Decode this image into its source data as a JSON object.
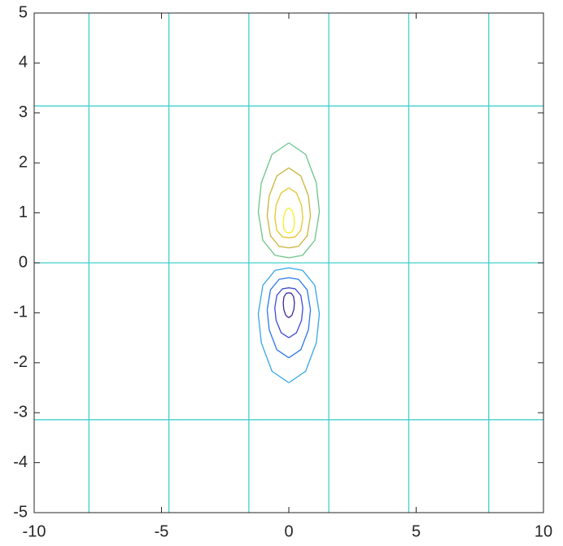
{
  "chart_data": {
    "type": "contour",
    "xlim": [
      -10,
      10
    ],
    "xticks": [
      -10,
      -5,
      0,
      5,
      10
    ],
    "ylim": [
      -5,
      5
    ],
    "yticks": [
      -5,
      -4,
      -3,
      -2,
      -1,
      0,
      1,
      2,
      3,
      4,
      5
    ],
    "series": [
      {
        "color": "#40d0cc",
        "x": [
          -7.85,
          -7.85,
          null,
          -4.71,
          -4.71,
          null,
          -1.57,
          -1.57,
          null,
          1.57,
          1.57,
          null,
          4.71,
          4.71,
          null,
          7.85,
          7.85,
          null,
          -10,
          10,
          null,
          -10,
          10,
          null,
          -10,
          10
        ],
        "y": [
          -5,
          5,
          null,
          -5,
          5,
          null,
          -5,
          5,
          null,
          -5,
          5,
          null,
          -5,
          5,
          null,
          -5,
          5,
          null,
          0,
          0,
          null,
          3.14,
          3.14,
          null,
          -3.14,
          -3.14
        ]
      },
      {
        "color": "#6cc48a",
        "x": [
          0,
          0.66,
          1.08,
          1.2,
          1.02,
          0.54,
          0,
          -0.54,
          -1.02,
          -1.2,
          -1.08,
          -0.66,
          0
        ],
        "y": [
          2.4,
          2.17,
          1.6,
          1.02,
          0.45,
          0.15,
          0.1,
          0.15,
          0.45,
          1.02,
          1.6,
          2.17,
          2.4
        ]
      },
      {
        "color": "#c9b43c",
        "x": [
          0,
          0.47,
          0.77,
          0.85,
          0.72,
          0.38,
          0,
          -0.38,
          -0.72,
          -0.85,
          -0.77,
          -0.47,
          0
        ],
        "y": [
          1.9,
          1.74,
          1.34,
          0.94,
          0.54,
          0.33,
          0.3,
          0.33,
          0.54,
          0.94,
          1.34,
          1.74,
          1.9
        ]
      },
      {
        "color": "#e6c62e",
        "x": [
          0,
          0.3,
          0.5,
          0.55,
          0.47,
          0.25,
          0,
          -0.25,
          -0.47,
          -0.55,
          -0.5,
          -0.3,
          0
        ],
        "y": [
          1.5,
          1.4,
          1.15,
          0.9,
          0.65,
          0.52,
          0.5,
          0.52,
          0.65,
          0.9,
          1.15,
          1.4,
          1.5
        ]
      },
      {
        "color": "#f5ee2a",
        "x": [
          0,
          0.12,
          0.2,
          0.22,
          0.19,
          0.1,
          0,
          -0.1,
          -0.19,
          -0.22,
          -0.2,
          -0.12,
          0
        ],
        "y": [
          1.1,
          1.05,
          0.93,
          0.8,
          0.68,
          0.61,
          0.6,
          0.61,
          0.68,
          0.8,
          0.93,
          1.05,
          1.1
        ]
      },
      {
        "color": "#35a6e8",
        "x": [
          0,
          0.66,
          1.08,
          1.2,
          1.02,
          0.54,
          0,
          -0.54,
          -1.02,
          -1.2,
          -1.08,
          -0.66,
          0
        ],
        "y": [
          -2.4,
          -2.17,
          -1.6,
          -1.02,
          -0.45,
          -0.15,
          -0.1,
          -0.15,
          -0.45,
          -1.02,
          -1.6,
          -2.17,
          -2.4
        ]
      },
      {
        "color": "#2c78ec",
        "x": [
          0,
          0.47,
          0.77,
          0.85,
          0.72,
          0.38,
          0,
          -0.38,
          -0.72,
          -0.85,
          -0.77,
          -0.47,
          0
        ],
        "y": [
          -1.9,
          -1.74,
          -1.34,
          -0.94,
          -0.54,
          -0.33,
          -0.3,
          -0.33,
          -0.54,
          -0.94,
          -1.34,
          -1.74,
          -1.9
        ]
      },
      {
        "color": "#3f4bd8",
        "x": [
          0,
          0.3,
          0.5,
          0.55,
          0.47,
          0.25,
          0,
          -0.25,
          -0.47,
          -0.55,
          -0.5,
          -0.3,
          0
        ],
        "y": [
          -1.5,
          -1.4,
          -1.15,
          -0.9,
          -0.65,
          -0.52,
          -0.5,
          -0.52,
          -0.65,
          -0.9,
          -1.15,
          -1.4,
          -1.5
        ]
      },
      {
        "color": "#3b2a9c",
        "x": [
          0,
          0.12,
          0.2,
          0.22,
          0.19,
          0.1,
          0,
          -0.1,
          -0.19,
          -0.22,
          -0.2,
          -0.12,
          0
        ],
        "y": [
          -1.1,
          -1.05,
          -0.93,
          -0.8,
          -0.68,
          -0.61,
          -0.6,
          -0.61,
          -0.68,
          -0.8,
          -0.93,
          -1.05,
          -1.1
        ]
      }
    ]
  }
}
